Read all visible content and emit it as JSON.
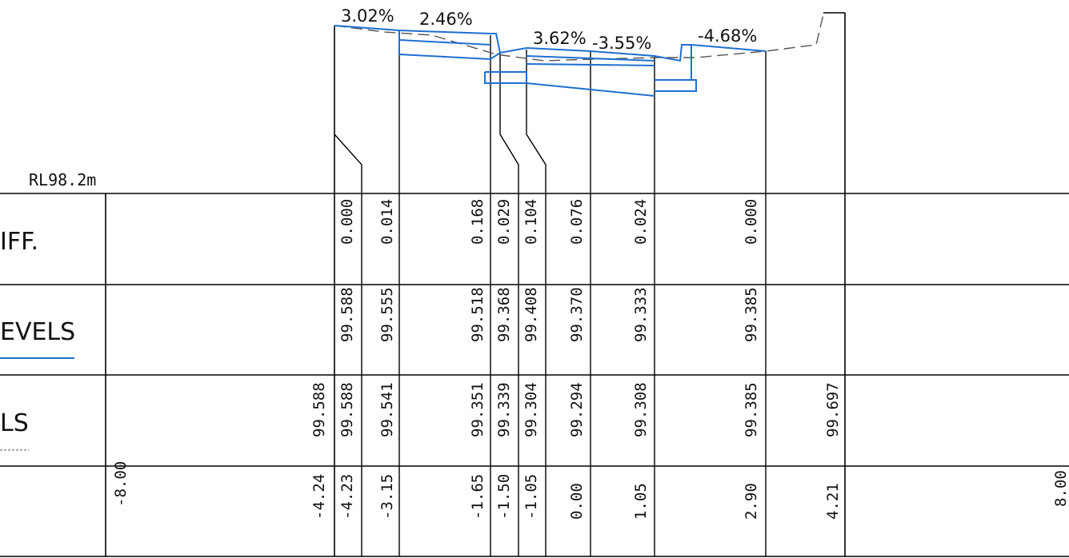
{
  "datum": "RL98.2m",
  "row_labels": {
    "diff": "IFF.",
    "design": "EVELS",
    "existing": "LS"
  },
  "grades": {
    "g1": "3.02%",
    "g2": "2.46%",
    "g3": "3.62%",
    "g4": "-3.55%",
    "g5": "-4.68%"
  },
  "columns": [
    {
      "offset": "-8.00",
      "existing": "",
      "design": "",
      "diff": ""
    },
    {
      "offset": "-4.24",
      "existing": "99.588",
      "design": "",
      "diff": ""
    },
    {
      "offset": "-4.23",
      "existing": "99.588",
      "design": "99.588",
      "diff": "0.000"
    },
    {
      "offset": "-3.15",
      "existing": "99.541",
      "design": "99.555",
      "diff": "0.014"
    },
    {
      "offset": "-1.65",
      "existing": "99.351",
      "design": "99.518",
      "diff": "0.168"
    },
    {
      "offset": "-1.50",
      "existing": "99.339",
      "design": "99.368",
      "diff": "0.029"
    },
    {
      "offset": "-1.05",
      "existing": "99.304",
      "design": "99.408",
      "diff": "0.104"
    },
    {
      "offset": "0.00",
      "existing": "99.294",
      "design": "99.370",
      "diff": "0.076"
    },
    {
      "offset": "1.05",
      "existing": "99.308",
      "design": "99.333",
      "diff": "0.024"
    },
    {
      "offset": "2.90",
      "existing": "99.385",
      "design": "99.385",
      "diff": "0.000"
    },
    {
      "offset": "4.21",
      "existing": "99.697",
      "design": "",
      "diff": ""
    },
    {
      "offset": "8.00",
      "existing": "",
      "design": "",
      "diff": ""
    }
  ],
  "colors": {
    "design_line": "#1f6fd1",
    "existing_line": "#555555",
    "grid": "#000000"
  }
}
